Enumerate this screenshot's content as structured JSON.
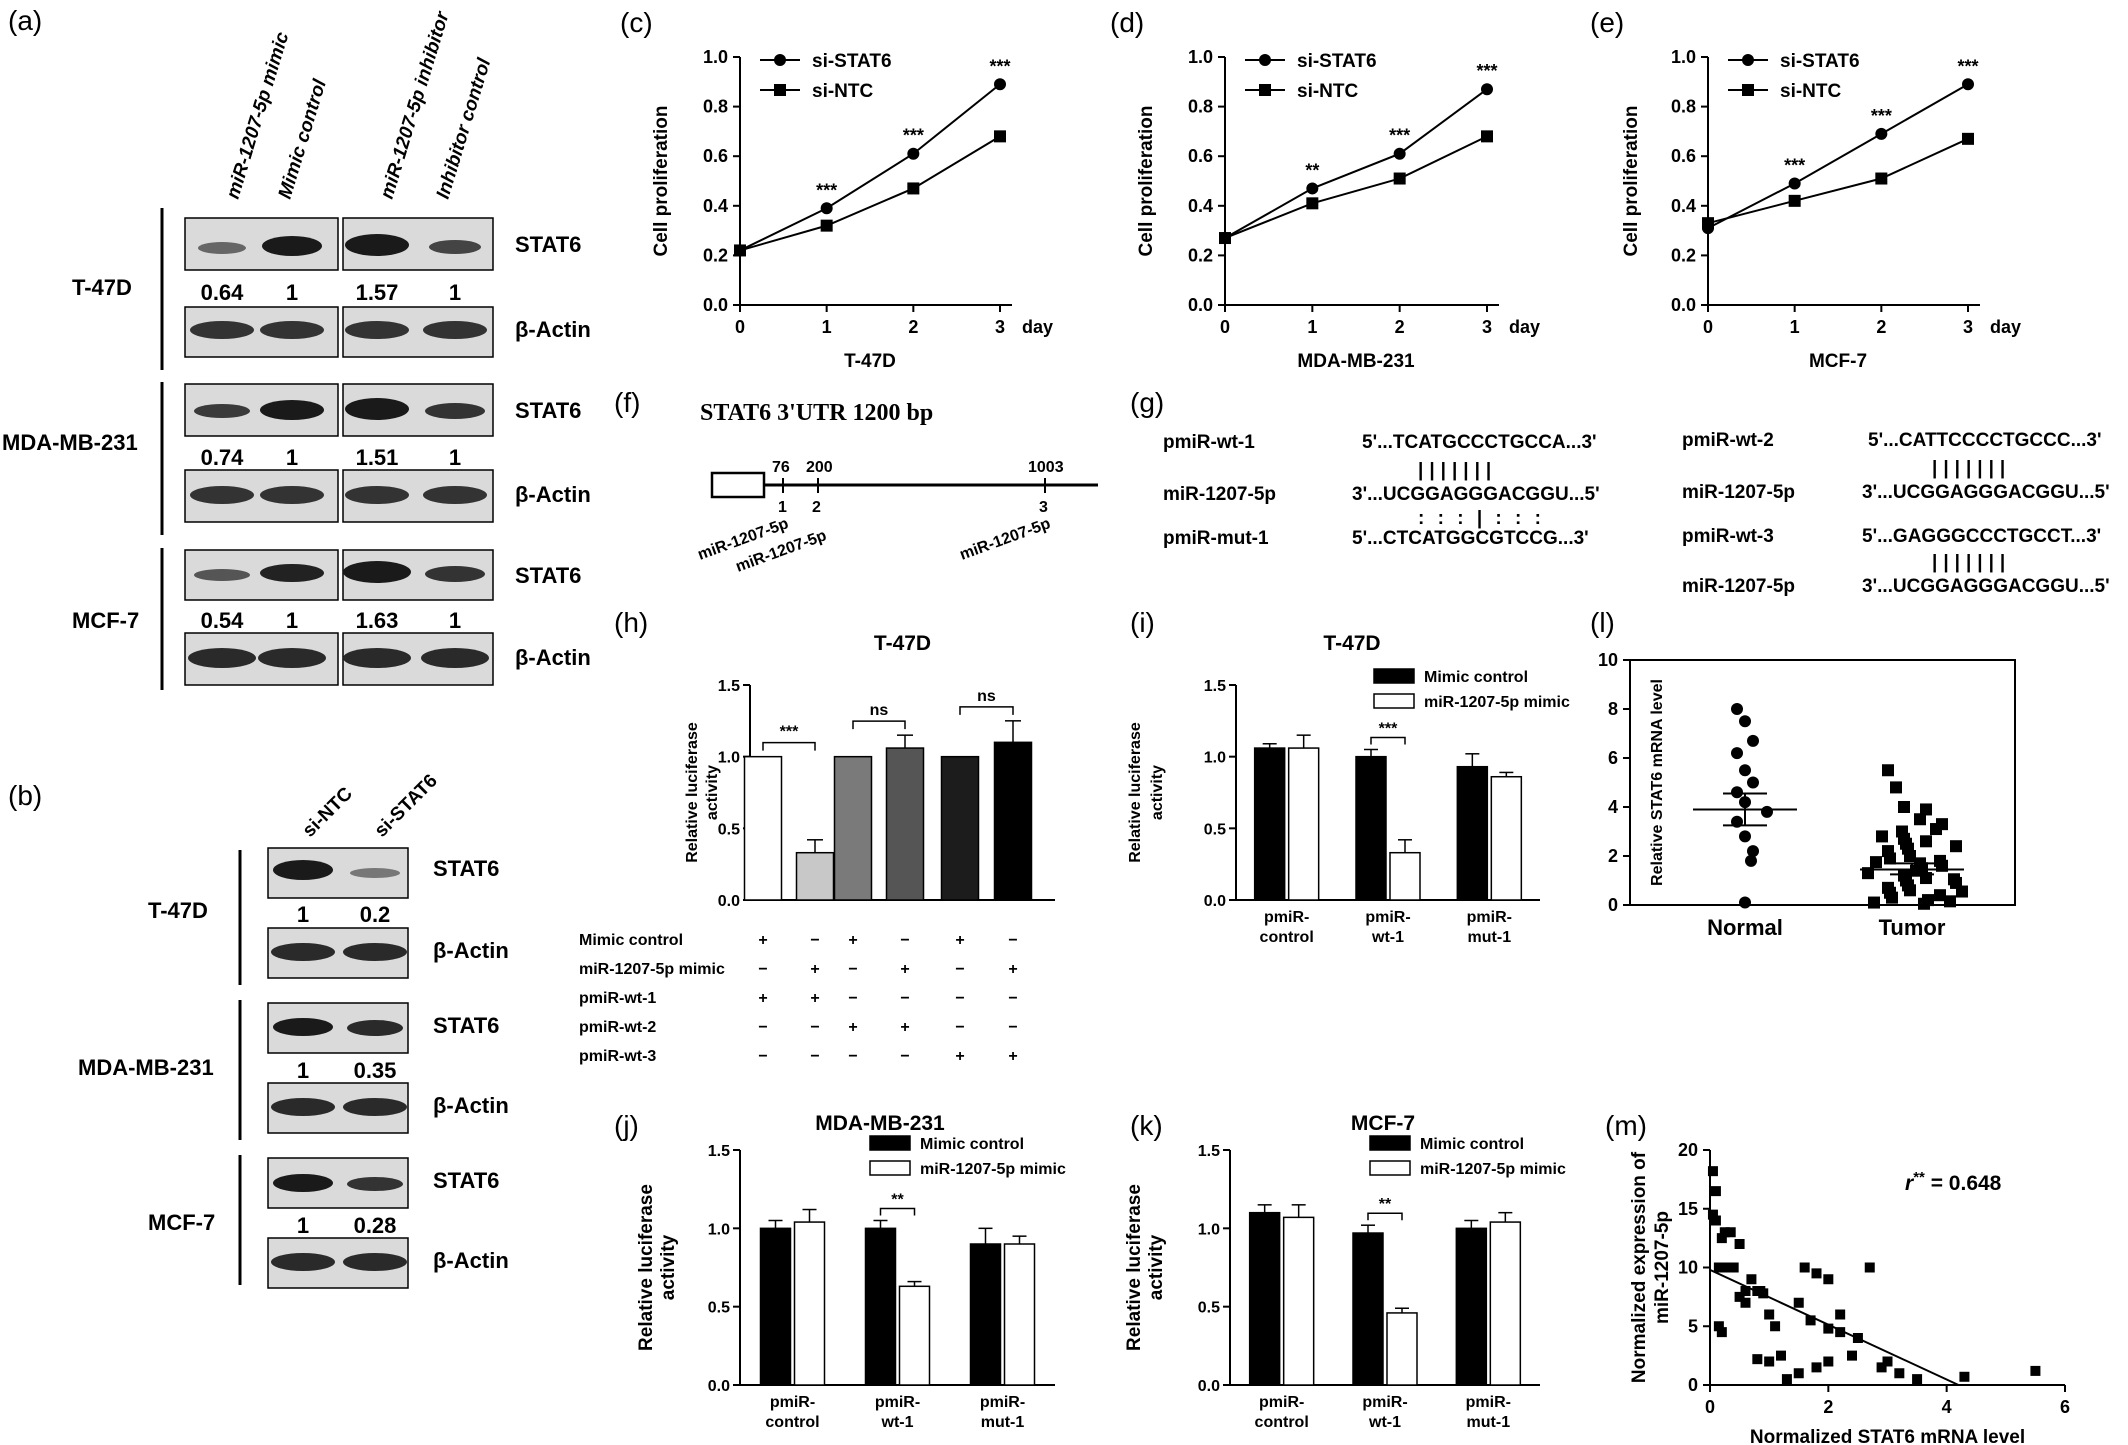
{
  "panel_labels": {
    "a": "(a)",
    "b": "(b)",
    "c": "(c)",
    "d": "(d)",
    "e": "(e)",
    "f": "(f)",
    "g": "(g)",
    "h": "(h)",
    "i": "(i)",
    "j": "(j)",
    "k": "(k)",
    "l": "(l)",
    "m": "(m)"
  },
  "panel_a": {
    "lanes": [
      "miR-1207-5p mimic",
      "Mimic control",
      "miR-1207-5p inhibitor",
      "Inhibitor control"
    ],
    "cell_lines": [
      "T-47D",
      "MDA-MB-231",
      "MCF-7"
    ],
    "band_stat6": "STAT6",
    "band_actin": "β-Actin",
    "quant": [
      [
        "0.64",
        "1",
        "1.57",
        "1"
      ],
      [
        "0.74",
        "1",
        "1.51",
        "1"
      ],
      [
        "0.54",
        "1",
        "1.63",
        "1"
      ]
    ]
  },
  "panel_b": {
    "lanes": [
      "si-NTC",
      "si-STAT6"
    ],
    "cell_lines": [
      "T-47D",
      "MDA-MB-231",
      "MCF-7"
    ],
    "band_stat6": "STAT6",
    "band_actin": "β-Actin",
    "quant": [
      [
        "1",
        "0.2"
      ],
      [
        "1",
        "0.35"
      ],
      [
        "1",
        "0.28"
      ]
    ]
  },
  "chart_data": [
    {
      "panel": "c",
      "type": "line",
      "x": [
        0,
        1,
        2,
        3
      ],
      "xunit": "day",
      "xlabel": "T-47D",
      "ylabel": "Cell proliferation",
      "ylim": [
        0,
        1.0
      ],
      "yticks": [
        "0.0",
        "0.2",
        "0.4",
        "0.6",
        "0.8",
        "1.0"
      ],
      "series": [
        {
          "name": "si-STAT6",
          "values": [
            0.22,
            0.39,
            0.61,
            0.89
          ]
        },
        {
          "name": "si-NTC",
          "values": [
            0.22,
            0.32,
            0.47,
            0.68
          ]
        }
      ],
      "annotations": [
        {
          "x": 1,
          "text": "***"
        },
        {
          "x": 2,
          "text": "***"
        },
        {
          "x": 3,
          "text": "***"
        }
      ]
    },
    {
      "panel": "d",
      "type": "line",
      "x": [
        0,
        1,
        2,
        3
      ],
      "xunit": "day",
      "xlabel": "MDA-MB-231",
      "ylabel": "Cell proliferation",
      "ylim": [
        0,
        1.0
      ],
      "yticks": [
        "0.0",
        "0.2",
        "0.4",
        "0.6",
        "0.8",
        "1.0"
      ],
      "series": [
        {
          "name": "si-STAT6",
          "values": [
            0.27,
            0.47,
            0.61,
            0.87
          ]
        },
        {
          "name": "si-NTC",
          "values": [
            0.27,
            0.41,
            0.51,
            0.68
          ]
        }
      ],
      "annotations": [
        {
          "x": 1,
          "text": "**"
        },
        {
          "x": 2,
          "text": "***"
        },
        {
          "x": 3,
          "text": "***"
        }
      ]
    },
    {
      "panel": "e",
      "type": "line",
      "x": [
        0,
        1,
        2,
        3
      ],
      "xunit": "day",
      "xlabel": "MCF-7",
      "ylabel": "Cell proliferation",
      "ylim": [
        0,
        1.0
      ],
      "yticks": [
        "0.0",
        "0.2",
        "0.4",
        "0.6",
        "0.8",
        "1.0"
      ],
      "series": [
        {
          "name": "si-STAT6",
          "values": [
            0.31,
            0.49,
            0.69,
            0.89
          ]
        },
        {
          "name": "si-NTC",
          "values": [
            0.33,
            0.42,
            0.51,
            0.67
          ]
        }
      ],
      "annotations": [
        {
          "x": 1,
          "text": "***"
        },
        {
          "x": 2,
          "text": "***"
        },
        {
          "x": 3,
          "text": "***"
        }
      ]
    },
    {
      "panel": "h",
      "type": "bar",
      "title": "T-47D",
      "ylabel": "Relative luciferase activity",
      "ylim": [
        0,
        1.5
      ],
      "yticks": [
        "0.0",
        "0.5",
        "1.0",
        "1.5"
      ],
      "values": [
        1.0,
        0.33,
        1.0,
        1.06,
        1.0,
        1.1
      ],
      "errors": [
        0,
        0.09,
        0,
        0.09,
        0,
        0.15
      ],
      "fills": [
        "#ffffff",
        "#c8c8c8",
        "#7a7a7a",
        "#555555",
        "#1c1c1c",
        "#000000"
      ],
      "significance": [
        {
          "pair": [
            0,
            1
          ],
          "text": "***"
        },
        {
          "pair": [
            2,
            3
          ],
          "text": "ns"
        },
        {
          "pair": [
            4,
            5
          ],
          "text": "ns"
        }
      ],
      "conditions": [
        {
          "label": "Mimic control",
          "signs": [
            "+",
            "−",
            "+",
            "−",
            "+",
            "−"
          ]
        },
        {
          "label": "miR-1207-5p mimic",
          "signs": [
            "−",
            "+",
            "−",
            "+",
            "−",
            "+"
          ]
        },
        {
          "label": "pmiR-wt-1",
          "signs": [
            "+",
            "+",
            "−",
            "−",
            "−",
            "−"
          ]
        },
        {
          "label": "pmiR-wt-2",
          "signs": [
            "−",
            "−",
            "+",
            "+",
            "−",
            "−"
          ]
        },
        {
          "label": "pmiR-wt-3",
          "signs": [
            "−",
            "−",
            "−",
            "−",
            "+",
            "+"
          ]
        }
      ]
    },
    {
      "panel": "i",
      "type": "bar",
      "title": "T-47D",
      "ylabel": "Relative luciferase activity",
      "ylim": [
        0,
        1.5
      ],
      "yticks": [
        "0.0",
        "0.5",
        "1.0",
        "1.5"
      ],
      "categories": [
        [
          "pmiR-",
          "control"
        ],
        [
          "pmiR-",
          "wt-1"
        ],
        [
          "pmiR-",
          "mut-1"
        ]
      ],
      "series": [
        {
          "name": "Mimic control",
          "values": [
            1.06,
            1.0,
            0.93
          ],
          "errors": [
            0.03,
            0.05,
            0.09
          ]
        },
        {
          "name": "miR-1207-5p mimic",
          "values": [
            1.06,
            0.33,
            0.86
          ],
          "errors": [
            0.09,
            0.09,
            0.03
          ]
        }
      ],
      "significance": [
        {
          "category": 1,
          "text": "***"
        }
      ]
    },
    {
      "panel": "j",
      "type": "bar",
      "title": "MDA-MB-231",
      "ylabel": "Relative luciferase activity",
      "ylim": [
        0,
        1.5
      ],
      "yticks": [
        "0.0",
        "0.5",
        "1.0",
        "1.5"
      ],
      "categories": [
        [
          "pmiR-",
          "control"
        ],
        [
          "pmiR-",
          "wt-1"
        ],
        [
          "pmiR-",
          "mut-1"
        ]
      ],
      "series": [
        {
          "name": "Mimic control",
          "values": [
            1.0,
            1.0,
            0.9
          ],
          "errors": [
            0.05,
            0.05,
            0.1
          ]
        },
        {
          "name": "miR-1207-5p mimic",
          "values": [
            1.04,
            0.63,
            0.9
          ],
          "errors": [
            0.08,
            0.03,
            0.05
          ]
        }
      ],
      "significance": [
        {
          "category": 1,
          "text": "**"
        }
      ]
    },
    {
      "panel": "k",
      "type": "bar",
      "title": "MCF-7",
      "ylabel": "Relative luciferase activity",
      "ylim": [
        0,
        1.5
      ],
      "yticks": [
        "0.0",
        "0.5",
        "1.0",
        "1.5"
      ],
      "categories": [
        [
          "pmiR-",
          "control"
        ],
        [
          "pmiR-",
          "wt-1"
        ],
        [
          "pmiR-",
          "mut-1"
        ]
      ],
      "series": [
        {
          "name": "Mimic control",
          "values": [
            1.1,
            0.97,
            1.0
          ],
          "errors": [
            0.05,
            0.05,
            0.05
          ]
        },
        {
          "name": "miR-1207-5p mimic",
          "values": [
            1.07,
            0.46,
            1.04
          ],
          "errors": [
            0.08,
            0.03,
            0.06
          ]
        }
      ],
      "significance": [
        {
          "category": 1,
          "text": "**"
        }
      ]
    },
    {
      "panel": "l",
      "type": "scatter",
      "ylabel": "Relative STAT6 mRNA level",
      "ylim": [
        0,
        10
      ],
      "yticks": [
        "0",
        "2",
        "4",
        "6",
        "8",
        "10"
      ],
      "categories": [
        "Normal",
        "Tumor"
      ],
      "groups": [
        {
          "name": "Normal",
          "mean": 3.9,
          "sem_low": 3.25,
          "sem_high": 4.55,
          "values": [
            8.0,
            7.5,
            6.7,
            6.2,
            5.5,
            5.0,
            4.6,
            4.2,
            3.8,
            3.4,
            2.8,
            2.2,
            1.8,
            0.1
          ]
        },
        {
          "name": "Tumor",
          "mean": 1.45,
          "sem_low": 1.25,
          "sem_high": 1.7,
          "values": [
            5.5,
            4.8,
            4.0,
            3.9,
            3.5,
            3.3,
            3.1,
            3.0,
            2.8,
            2.7,
            2.6,
            2.5,
            2.4,
            2.3,
            2.2,
            2.0,
            1.9,
            1.8,
            1.7,
            1.6,
            1.5,
            1.4,
            1.3,
            1.2,
            1.1,
            1.0,
            0.9,
            0.8,
            0.7,
            0.6,
            0.5,
            0.4,
            0.3,
            0.2,
            0.15,
            0.1,
            0.05,
            1.75,
            1.05,
            0.55
          ]
        }
      ]
    },
    {
      "panel": "m",
      "type": "scatter",
      "xlabel": "Normalized STAT6 mRNA level",
      "ylabel": "Normalized expression of miR-1207-5p",
      "xlim": [
        0,
        6
      ],
      "ylim": [
        0,
        20
      ],
      "xticks": [
        "0",
        "2",
        "4",
        "6"
      ],
      "yticks": [
        "0",
        "5",
        "10",
        "15",
        "20"
      ],
      "annotation": {
        "prefix": "r",
        "sup": "**",
        "rest": " = 0.648"
      },
      "fit": [
        [
          0,
          9.8
        ],
        [
          4.2,
          0
        ]
      ],
      "points": [
        [
          0.05,
          18.2
        ],
        [
          0.1,
          16.5
        ],
        [
          0.1,
          14.0
        ],
        [
          0.2,
          12.5
        ],
        [
          0.25,
          13.0
        ],
        [
          0.3,
          10.0
        ],
        [
          0.35,
          13.0
        ],
        [
          0.15,
          10.0
        ],
        [
          0.4,
          10.0
        ],
        [
          0.5,
          12.0
        ],
        [
          0.6,
          8.0
        ],
        [
          0.7,
          9.0
        ],
        [
          0.8,
          8.0
        ],
        [
          0.85,
          8.0
        ],
        [
          0.9,
          7.8
        ],
        [
          1.0,
          6.0
        ],
        [
          1.1,
          5.0
        ],
        [
          0.5,
          7.5
        ],
        [
          0.6,
          7.0
        ],
        [
          0.2,
          4.5
        ],
        [
          0.15,
          5.0
        ],
        [
          0.05,
          14.5
        ],
        [
          1.5,
          7.0
        ],
        [
          1.6,
          10.0
        ],
        [
          1.8,
          9.5
        ],
        [
          2.0,
          9.0
        ],
        [
          2.2,
          6.0
        ],
        [
          1.7,
          5.5
        ],
        [
          2.0,
          4.8
        ],
        [
          2.2,
          4.5
        ],
        [
          2.5,
          4.0
        ],
        [
          2.7,
          10.0
        ],
        [
          2.4,
          2.5
        ],
        [
          1.2,
          2.5
        ],
        [
          1.0,
          2.0
        ],
        [
          1.5,
          1.0
        ],
        [
          1.8,
          1.5
        ],
        [
          2.0,
          2.0
        ],
        [
          2.9,
          1.5
        ],
        [
          3.0,
          2.0
        ],
        [
          3.2,
          1.0
        ],
        [
          3.5,
          0.5
        ],
        [
          4.3,
          0.7
        ],
        [
          5.5,
          1.2
        ],
        [
          1.3,
          0.5
        ],
        [
          0.8,
          2.2
        ]
      ]
    }
  ],
  "panel_f": {
    "title": "STAT6  3'UTR 1200 bp",
    "positions": [
      "76",
      "200",
      "1003"
    ],
    "sites": [
      "1",
      "2",
      "3"
    ],
    "site_labels": [
      "miR-1207-5p",
      "miR-1207-5p",
      "miR-1207-5p"
    ]
  },
  "panel_g": {
    "left": [
      {
        "name": "pmiR-wt-1",
        "seq": "5'...TCATGCCCTGCCA...3'"
      },
      {
        "name": "miR-1207-5p",
        "seq": "3'...UCGGAGGGACGGU...5'"
      },
      {
        "name": "pmiR-mut-1",
        "seq": "5'...CTCATGGCGTCCG...3'"
      }
    ],
    "right": [
      {
        "name": "pmiR-wt-2",
        "seq": "5'...CATTCCCCTGCCC...3'"
      },
      {
        "name": "miR-1207-5p",
        "seq": "3'...UCGGAGGGACGGU...5'"
      },
      {
        "name": "pmiR-wt-3",
        "seq": "5'...GAGGGCCCTGCCT...3'"
      },
      {
        "name": "miR-1207-5p",
        "seq": "3'...UCGGAGGGACGGU...5'"
      }
    ]
  }
}
